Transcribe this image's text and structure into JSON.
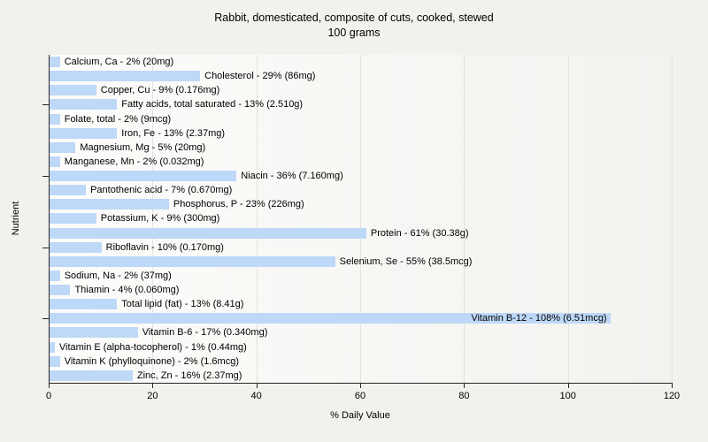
{
  "title": {
    "line1": "Rabbit, domesticated, composite of cuts, cooked, stewed",
    "line2": "100 grams"
  },
  "chart_data": {
    "type": "bar",
    "orientation": "horizontal",
    "title": "Rabbit, domesticated, composite of cuts, cooked, stewed",
    "subtitle": "100 grams",
    "xlabel": "% Daily Value",
    "ylabel": "Nutrient",
    "xlim": [
      0,
      120
    ],
    "x_ticks": [
      0,
      20,
      40,
      60,
      80,
      100,
      120
    ],
    "grid": true,
    "legend": "none",
    "bar_color": "#bed8f7",
    "axis_color": "#262626",
    "gridline_color": "#e3e2de",
    "y_axis_tick_rows": [
      4,
      9,
      14,
      19
    ],
    "items": [
      {
        "name": "Calcium, Ca",
        "percent": 2,
        "amount": "20mg"
      },
      {
        "name": "Cholesterol",
        "percent": 29,
        "amount": "86mg"
      },
      {
        "name": "Copper, Cu",
        "percent": 9,
        "amount": "0.176mg"
      },
      {
        "name": "Fatty acids, total saturated",
        "percent": 13,
        "amount": "2.510g"
      },
      {
        "name": "Folate, total",
        "percent": 2,
        "amount": "9mcg"
      },
      {
        "name": "Iron, Fe",
        "percent": 13,
        "amount": "2.37mg"
      },
      {
        "name": "Magnesium, Mg",
        "percent": 5,
        "amount": "20mg"
      },
      {
        "name": "Manganese, Mn",
        "percent": 2,
        "amount": "0.032mg"
      },
      {
        "name": "Niacin",
        "percent": 36,
        "amount": "7.160mg"
      },
      {
        "name": "Pantothenic acid",
        "percent": 7,
        "amount": "0.670mg"
      },
      {
        "name": "Phosphorus, P",
        "percent": 23,
        "amount": "226mg"
      },
      {
        "name": "Potassium, K",
        "percent": 9,
        "amount": "300mg"
      },
      {
        "name": "Protein",
        "percent": 61,
        "amount": "30.38g"
      },
      {
        "name": "Riboflavin",
        "percent": 10,
        "amount": "0.170mg"
      },
      {
        "name": "Selenium, Se",
        "percent": 55,
        "amount": "38.5mcg"
      },
      {
        "name": "Sodium, Na",
        "percent": 2,
        "amount": "37mg"
      },
      {
        "name": "Thiamin",
        "percent": 4,
        "amount": "0.060mg"
      },
      {
        "name": "Total lipid (fat)",
        "percent": 13,
        "amount": "8.41g"
      },
      {
        "name": "Vitamin B-12",
        "percent": 108,
        "amount": "6.51mcg",
        "label_inside": true
      },
      {
        "name": "Vitamin B-6",
        "percent": 17,
        "amount": "0.340mg"
      },
      {
        "name": "Vitamin E (alpha-tocopherol)",
        "percent": 1,
        "amount": "0.44mg"
      },
      {
        "name": "Vitamin K (phylloquinone)",
        "percent": 2,
        "amount": "1.6mcg"
      },
      {
        "name": "Zinc, Zn",
        "percent": 16,
        "amount": "2.37mg"
      }
    ]
  }
}
